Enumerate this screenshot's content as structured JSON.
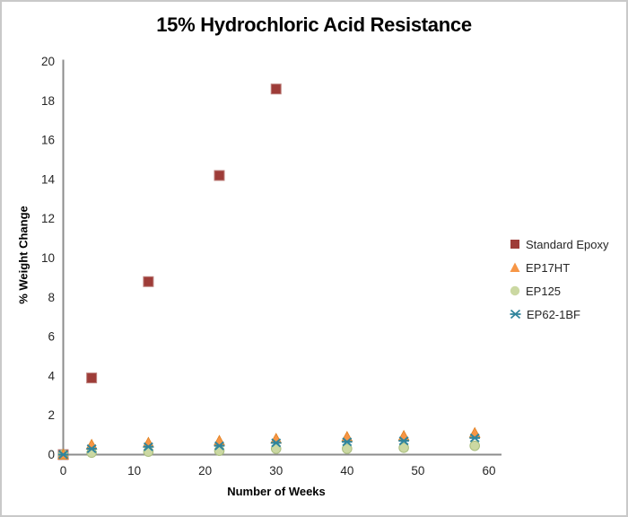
{
  "chart_data": {
    "type": "scatter",
    "title": "15% Hydrochloric Acid Resistance",
    "xlabel": "Number of Weeks",
    "ylabel": "% Weight Change",
    "xlim": [
      0,
      60
    ],
    "ylim": [
      0,
      20
    ],
    "xticks": [
      0,
      10,
      20,
      30,
      40,
      50,
      60
    ],
    "yticks": [
      0,
      2,
      4,
      6,
      8,
      10,
      12,
      14,
      16,
      18,
      20
    ],
    "grid": false,
    "legend_position": "right",
    "axis_color": "#8C8C8C",
    "tick_label_color": "#262626",
    "series": [
      {
        "name": "Standard Epoxy",
        "marker": "square",
        "color": "#9E3C38",
        "edge_color": "#BE827E",
        "x": [
          0,
          4,
          12,
          22,
          30
        ],
        "y": [
          0,
          3.9,
          8.8,
          14.2,
          18.6
        ]
      },
      {
        "name": "EP17HT",
        "marker": "triangle",
        "color": "#F79646",
        "edge_color": "#E0801F",
        "x": [
          0,
          4,
          12,
          22,
          30,
          40,
          48,
          58
        ],
        "y": [
          0,
          0.5,
          0.6,
          0.7,
          0.8,
          0.9,
          0.95,
          1.1
        ]
      },
      {
        "name": "EP125",
        "marker": "circle",
        "color": "#CBD8A2",
        "edge_color": "#A9BD7E",
        "x": [
          0,
          4,
          12,
          22,
          30,
          40,
          48,
          58
        ],
        "y": [
          0,
          0.1,
          0.15,
          0.2,
          0.3,
          0.3,
          0.35,
          0.45
        ]
      },
      {
        "name": "EP62-1BF",
        "marker": "x",
        "color": "#31859C",
        "edge_color": "#31859C",
        "x": [
          0,
          4,
          12,
          22,
          30,
          40,
          48,
          58
        ],
        "y": [
          0,
          0.3,
          0.4,
          0.45,
          0.6,
          0.65,
          0.7,
          0.85
        ]
      }
    ]
  }
}
